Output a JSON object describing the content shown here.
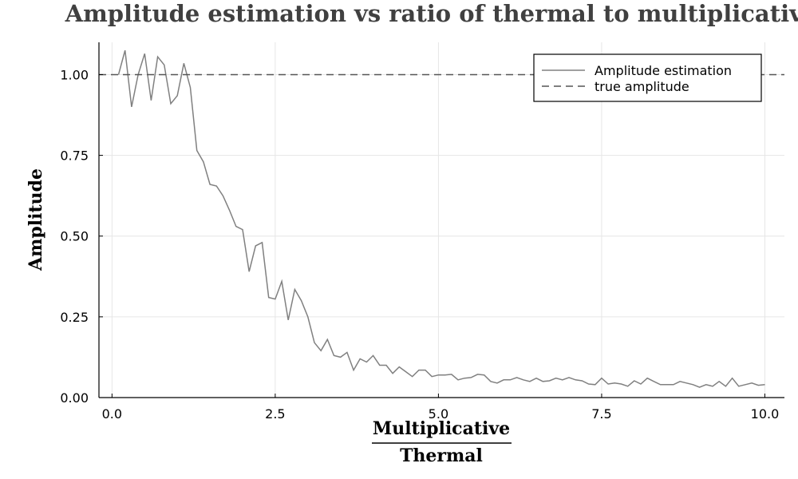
{
  "chart_data": {
    "type": "line",
    "title": "Amplitude estimation vs ratio of thermal to multiplicative",
    "xlabel_numerator": "Multiplicative",
    "xlabel_denominator": "Thermal",
    "ylabel": "Amplitude",
    "xlim": [
      -0.2,
      10.3
    ],
    "ylim": [
      0,
      1.1
    ],
    "xticks": [
      0.0,
      2.5,
      5.0,
      7.5,
      10.0
    ],
    "xtick_labels": [
      "0.0",
      "2.5",
      "5.0",
      "7.5",
      "10.0"
    ],
    "yticks": [
      0.0,
      0.25,
      0.5,
      0.75,
      1.0
    ],
    "ytick_labels": [
      "0.00",
      "0.25",
      "0.50",
      "0.75",
      "1.00"
    ],
    "grid": true,
    "legend_position": "top-right",
    "series": [
      {
        "name": "Amplitude estimation",
        "color": "#808080",
        "style": "solid",
        "x": [
          0.1,
          0.2,
          0.3,
          0.4,
          0.5,
          0.6,
          0.7,
          0.8,
          0.9,
          1.0,
          1.1,
          1.2,
          1.3,
          1.4,
          1.5,
          1.6,
          1.7,
          1.8,
          1.9,
          2.0,
          2.1,
          2.2,
          2.3,
          2.4,
          2.5,
          2.6,
          2.7,
          2.8,
          2.9,
          3.0,
          3.1,
          3.2,
          3.3,
          3.4,
          3.5,
          3.6,
          3.7,
          3.8,
          3.9,
          4.0,
          4.1,
          4.2,
          4.3,
          4.4,
          4.5,
          4.6,
          4.7,
          4.8,
          4.9,
          5.0,
          5.1,
          5.2,
          5.3,
          5.4,
          5.5,
          5.6,
          5.7,
          5.8,
          5.9,
          6.0,
          6.1,
          6.2,
          6.3,
          6.4,
          6.5,
          6.6,
          6.7,
          6.8,
          6.9,
          7.0,
          7.1,
          7.2,
          7.3,
          7.4,
          7.5,
          7.6,
          7.7,
          7.8,
          7.9,
          8.0,
          8.1,
          8.2,
          8.3,
          8.4,
          8.5,
          8.6,
          8.7,
          8.8,
          8.9,
          9.0,
          9.1,
          9.2,
          9.3,
          9.4,
          9.5,
          9.6,
          9.7,
          9.8,
          9.9,
          10.0
        ],
        "y": [
          1.0,
          1.075,
          0.9,
          1.0,
          1.065,
          0.92,
          1.055,
          1.03,
          0.91,
          0.935,
          1.035,
          0.96,
          0.765,
          0.73,
          0.66,
          0.655,
          0.625,
          0.58,
          0.53,
          0.52,
          0.39,
          0.47,
          0.48,
          0.31,
          0.305,
          0.36,
          0.24,
          0.335,
          0.3,
          0.25,
          0.17,
          0.145,
          0.18,
          0.13,
          0.125,
          0.14,
          0.085,
          0.12,
          0.11,
          0.13,
          0.1,
          0.1,
          0.075,
          0.095,
          0.08,
          0.065,
          0.085,
          0.085,
          0.065,
          0.07,
          0.07,
          0.072,
          0.055,
          0.06,
          0.062,
          0.072,
          0.07,
          0.05,
          0.045,
          0.055,
          0.055,
          0.062,
          0.055,
          0.05,
          0.06,
          0.05,
          0.052,
          0.06,
          0.055,
          0.062,
          0.055,
          0.052,
          0.042,
          0.04,
          0.06,
          0.042,
          0.045,
          0.042,
          0.035,
          0.052,
          0.042,
          0.06,
          0.05,
          0.04,
          0.04,
          0.04,
          0.05,
          0.045,
          0.04,
          0.032,
          0.04,
          0.035,
          0.05,
          0.035,
          0.06,
          0.035,
          0.04,
          0.045,
          0.038,
          0.04
        ]
      },
      {
        "name": "true amplitude",
        "color": "#555555",
        "style": "dashed",
        "x": [
          -0.2,
          10.3
        ],
        "y": [
          1.0,
          1.0
        ]
      }
    ]
  }
}
